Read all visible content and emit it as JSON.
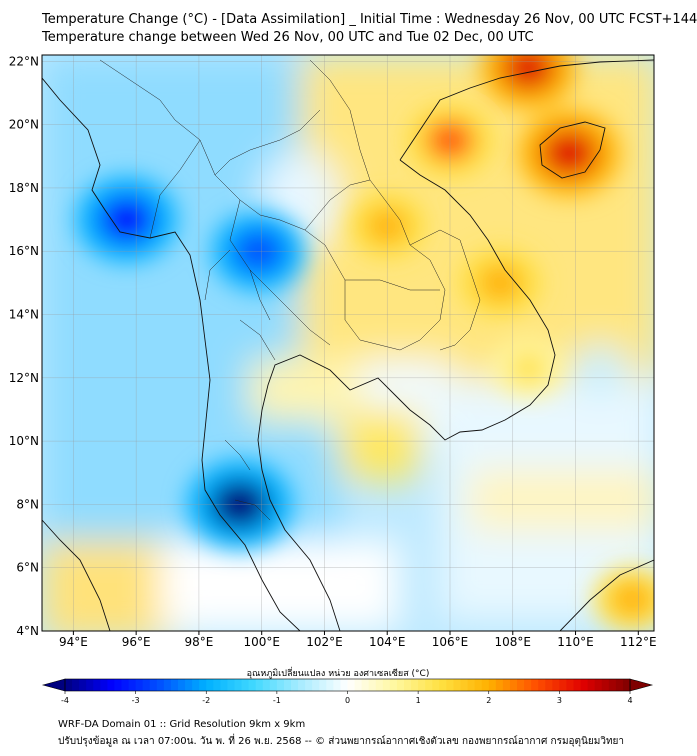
{
  "header": {
    "title_line1": "Temperature Change (°C) - [Data Assimilation] _ Initial Time : Wednesday 26 Nov, 00 UTC FCST+144",
    "title_line2": "Temperature change between Wed 26 Nov, 00 UTC and Tue 02 Dec, 00 UTC"
  },
  "map": {
    "lat_labels": [
      "22°N",
      "20°N",
      "18°N",
      "16°N",
      "14°N",
      "12°N",
      "10°N",
      "8°N",
      "6°N",
      "4°N"
    ],
    "lon_labels": [
      "94°E",
      "96°E",
      "98°E",
      "100°E",
      "102°E",
      "104°E",
      "106°E",
      "108°E",
      "110°E",
      "112°E"
    ],
    "lat_values": [
      22,
      20,
      18,
      16,
      14,
      12,
      10,
      8,
      6,
      4
    ],
    "lon_values": [
      94,
      96,
      98,
      100,
      102,
      104,
      106,
      108,
      110,
      112
    ],
    "extent": {
      "lon_min": 93,
      "lon_max": 112.5,
      "lat_min": 4,
      "lat_max": 22.2
    },
    "warm_spots": [
      {
        "name": "north-vietnam-hot",
        "lon": 106.0,
        "lat": 19.5,
        "value": 2.6
      },
      {
        "name": "south-china-hot",
        "lon": 108.5,
        "lat": 21.8,
        "value": 3.2
      },
      {
        "name": "hainan-hot",
        "lon": 109.8,
        "lat": 19.1,
        "value": 3.5
      },
      {
        "name": "laos-warm",
        "lon": 104.0,
        "lat": 16.8,
        "value": 2.0
      },
      {
        "name": "central-vietnam-warm",
        "lon": 107.6,
        "lat": 15.0,
        "value": 2.3
      },
      {
        "name": "south-vietnam-warm",
        "lon": 108.5,
        "lat": 12.3,
        "value": 1.6
      },
      {
        "name": "se-corner-warm",
        "lon": 111.8,
        "lat": 5.0,
        "value": 2.0
      }
    ],
    "cold_spots": [
      {
        "name": "myanmar-cold",
        "lon": 95.7,
        "lat": 17.0,
        "value": -3.5
      },
      {
        "name": "central-thailand-cold",
        "lon": 99.9,
        "lat": 16.0,
        "value": -3.0
      },
      {
        "name": "south-thailand-cold",
        "lon": 99.3,
        "lat": 8.0,
        "value": -3.8
      }
    ]
  },
  "colorbar": {
    "title": "อุณหภูมิเปลี่ยนแปลง หน่วย องศาเซลเซียส (°C)",
    "min": -4,
    "max": 4,
    "tick_labels": [
      "-4",
      "-3",
      "-2",
      "-1",
      "0",
      "1",
      "2",
      "3",
      "4"
    ],
    "tick_values": [
      -4,
      -3,
      -2,
      -1,
      0,
      1,
      2,
      3,
      4
    ],
    "colors": [
      "#00007f",
      "#0000ff",
      "#0050ff",
      "#00b0ff",
      "#40d8ff",
      "#a8ecff",
      "#ffffff",
      "#fff8a0",
      "#ffe040",
      "#ffb000",
      "#ff5000",
      "#e00000",
      "#7f0000"
    ]
  },
  "footer": {
    "line1": "WRF-DA Domain 01 :: Grid Resolution 9km x 9km",
    "line2": "ปรับปรุงข้อมูล ณ เวลา 07:00น. วัน พ. ที่ 26 พ.ย. 2568 -- © ส่วนพยากรณ์อากาศเชิงตัวเลข กองพยากรณ์อากาศ กรมอุตุนิยมวิทยา"
  }
}
